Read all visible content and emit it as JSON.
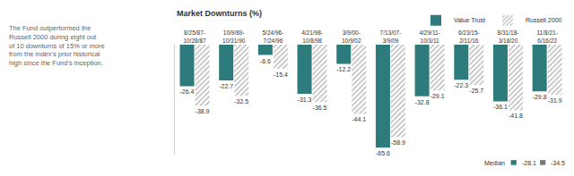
{
  "chart_data": {
    "type": "bar",
    "title": "Market Downturns (%)",
    "note": [
      "The Fund outperformed the",
      "Russell 2000 during eight out",
      "of 10 downturns of 15% or more",
      "from the index's prior historical",
      "high since the Fund's inception."
    ],
    "categories": [
      "8/25/87-10/28/87",
      "10/9/89-10/31/90",
      "5/24/96-7/24/96",
      "4/21/98-10/8/98",
      "3/9/00-10/9/02",
      "7/13/07-3/9/09",
      "4/29/11-10/3/11",
      "6/23/15-2/11/16",
      "8/31/18-3/18/20",
      "11/8/21-6/16/22"
    ],
    "series": [
      {
        "name": "Value Trust",
        "color": "#2e7b7b",
        "values": [
          -26.4,
          -22.7,
          -6.6,
          -31.3,
          -12.2,
          -65.6,
          -32.8,
          -22.3,
          -36.1,
          -29.8
        ]
      },
      {
        "name": "Russell 2000",
        "color": "#7a7a7a",
        "values": [
          -38.9,
          -32.5,
          -15.4,
          -36.5,
          -44.1,
          -58.9,
          -29.1,
          -25.7,
          -41.8,
          -31.9
        ]
      }
    ],
    "ylim": [
      -70,
      0
    ],
    "data_labels": true,
    "tick_labels": "x",
    "legend": "top right",
    "median": {
      "label": "Median",
      "values": [
        -28.1,
        -34.5
      ]
    }
  }
}
